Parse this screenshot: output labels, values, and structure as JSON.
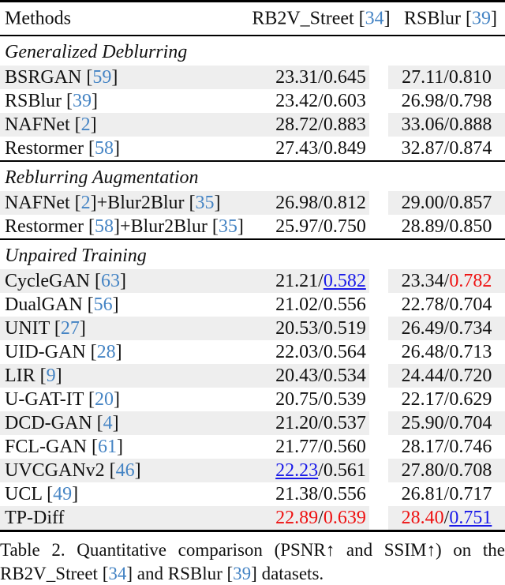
{
  "colors": {
    "cite_blue": "#4584c4",
    "highlight_red": "#ee1111",
    "highlight_blue": "#1a1ae8",
    "stripe_gray": "#eeeeee",
    "text": "#111111",
    "rule": "#000000"
  },
  "header": {
    "methods_label": "Methods",
    "dataset1": [
      {
        "t": "RB2V_Street ["
      },
      {
        "t": "34",
        "c": "cite"
      },
      {
        "t": "]"
      }
    ],
    "dataset2": [
      {
        "t": "RSBlur ["
      },
      {
        "t": "39",
        "c": "cite"
      },
      {
        "t": "]"
      }
    ]
  },
  "sections": [
    {
      "title": "Generalized Deblurring",
      "rows": [
        {
          "striped": true,
          "method": [
            {
              "t": "BSRGAN ["
            },
            {
              "t": "59",
              "c": "cite"
            },
            {
              "t": "]"
            }
          ],
          "v1": [
            {
              "t": "23.31/0.645"
            }
          ],
          "v2": [
            {
              "t": "27.11/0.810"
            }
          ]
        },
        {
          "striped": false,
          "method": [
            {
              "t": "RSBlur ["
            },
            {
              "t": "39",
              "c": "cite"
            },
            {
              "t": "]"
            }
          ],
          "v1": [
            {
              "t": "23.42/0.603"
            }
          ],
          "v2": [
            {
              "t": "26.98/0.798"
            }
          ]
        },
        {
          "striped": true,
          "method": [
            {
              "t": "NAFNet ["
            },
            {
              "t": "2",
              "c": "cite"
            },
            {
              "t": "]"
            }
          ],
          "v1": [
            {
              "t": "28.72/0.883"
            }
          ],
          "v2": [
            {
              "t": "33.06/0.888"
            }
          ]
        },
        {
          "striped": false,
          "method": [
            {
              "t": "Restormer ["
            },
            {
              "t": "58",
              "c": "cite"
            },
            {
              "t": "]"
            }
          ],
          "v1": [
            {
              "t": "27.43/0.849"
            }
          ],
          "v2": [
            {
              "t": "32.87/0.874"
            }
          ]
        }
      ]
    },
    {
      "title": "Reblurring Augmentation",
      "rows": [
        {
          "striped": true,
          "method": [
            {
              "t": "NAFNet ["
            },
            {
              "t": "2",
              "c": "cite"
            },
            {
              "t": "]+Blur2Blur ["
            },
            {
              "t": "35",
              "c": "cite"
            },
            {
              "t": "]"
            }
          ],
          "v1": [
            {
              "t": "26.98/0.812"
            }
          ],
          "v2": [
            {
              "t": "29.00/0.857"
            }
          ]
        },
        {
          "striped": false,
          "method": [
            {
              "t": "Restormer ["
            },
            {
              "t": "58",
              "c": "cite"
            },
            {
              "t": "]+Blur2Blur ["
            },
            {
              "t": "35",
              "c": "cite"
            },
            {
              "t": "]"
            }
          ],
          "v1": [
            {
              "t": "25.97/0.750"
            }
          ],
          "v2": [
            {
              "t": "28.89/0.850"
            }
          ]
        }
      ]
    },
    {
      "title": "Unpaired Training",
      "rows": [
        {
          "striped": true,
          "method": [
            {
              "t": "CycleGAN ["
            },
            {
              "t": "63",
              "c": "cite"
            },
            {
              "t": "]"
            }
          ],
          "v1": [
            {
              "t": "21.21/"
            },
            {
              "t": "0.582",
              "c": "blue"
            }
          ],
          "v2": [
            {
              "t": "23.34/"
            },
            {
              "t": "0.782",
              "c": "red"
            }
          ]
        },
        {
          "striped": false,
          "method": [
            {
              "t": "DualGAN ["
            },
            {
              "t": "56",
              "c": "cite"
            },
            {
              "t": "]"
            }
          ],
          "v1": [
            {
              "t": "21.02/0.556"
            }
          ],
          "v2": [
            {
              "t": "22.78/0.704"
            }
          ]
        },
        {
          "striped": true,
          "method": [
            {
              "t": "UNIT ["
            },
            {
              "t": "27",
              "c": "cite"
            },
            {
              "t": "]"
            }
          ],
          "v1": [
            {
              "t": "20.53/0.519"
            }
          ],
          "v2": [
            {
              "t": "26.49/0.734"
            }
          ]
        },
        {
          "striped": false,
          "method": [
            {
              "t": "UID-GAN ["
            },
            {
              "t": "28",
              "c": "cite"
            },
            {
              "t": "]"
            }
          ],
          "v1": [
            {
              "t": "22.03/0.564"
            }
          ],
          "v2": [
            {
              "t": "26.48/0.713"
            }
          ]
        },
        {
          "striped": true,
          "method": [
            {
              "t": "LIR ["
            },
            {
              "t": "9",
              "c": "cite"
            },
            {
              "t": "]"
            }
          ],
          "v1": [
            {
              "t": "20.43/0.534"
            }
          ],
          "v2": [
            {
              "t": "24.44/0.720"
            }
          ]
        },
        {
          "striped": false,
          "method": [
            {
              "t": "U-GAT-IT ["
            },
            {
              "t": "20",
              "c": "cite"
            },
            {
              "t": "]"
            }
          ],
          "v1": [
            {
              "t": "20.75/0.539"
            }
          ],
          "v2": [
            {
              "t": "22.17/0.629"
            }
          ]
        },
        {
          "striped": true,
          "method": [
            {
              "t": "DCD-GAN ["
            },
            {
              "t": "4",
              "c": "cite"
            },
            {
              "t": "]"
            }
          ],
          "v1": [
            {
              "t": "21.20/0.537"
            }
          ],
          "v2": [
            {
              "t": "25.90/0.704"
            }
          ]
        },
        {
          "striped": false,
          "method": [
            {
              "t": "FCL-GAN ["
            },
            {
              "t": "61",
              "c": "cite"
            },
            {
              "t": "]"
            }
          ],
          "v1": [
            {
              "t": "21.77/0.560"
            }
          ],
          "v2": [
            {
              "t": "28.17/0.746"
            }
          ]
        },
        {
          "striped": true,
          "method": [
            {
              "t": "UVCGANv2 ["
            },
            {
              "t": "46",
              "c": "cite"
            },
            {
              "t": "]"
            }
          ],
          "v1": [
            {
              "t": "22.23",
              "c": "blue"
            },
            {
              "t": "/0.561"
            }
          ],
          "v2": [
            {
              "t": "27.80/0.708"
            }
          ]
        },
        {
          "striped": false,
          "method": [
            {
              "t": "UCL ["
            },
            {
              "t": "49",
              "c": "cite"
            },
            {
              "t": "]"
            }
          ],
          "v1": [
            {
              "t": "21.38/0.556"
            }
          ],
          "v2": [
            {
              "t": "26.81/0.717"
            }
          ]
        },
        {
          "striped": true,
          "method": [
            {
              "t": "TP-Diff"
            }
          ],
          "v1": [
            {
              "t": "22.89",
              "c": "red"
            },
            {
              "t": "/"
            },
            {
              "t": "0.639",
              "c": "red"
            }
          ],
          "v2": [
            {
              "t": "28.40",
              "c": "red"
            },
            {
              "t": "/"
            },
            {
              "t": "0.751",
              "c": "blue"
            }
          ]
        }
      ]
    }
  ],
  "caption": {
    "line1": [
      {
        "t": "Table 2.  Quantitative comparison (PSNR↑ and SSIM↑) on the"
      }
    ],
    "line2": [
      {
        "t": "RB2V_Street ["
      },
      {
        "t": "34",
        "c": "cite"
      },
      {
        "t": "] and RSBlur ["
      },
      {
        "t": "39",
        "c": "cite"
      },
      {
        "t": "] datasets."
      }
    ]
  }
}
